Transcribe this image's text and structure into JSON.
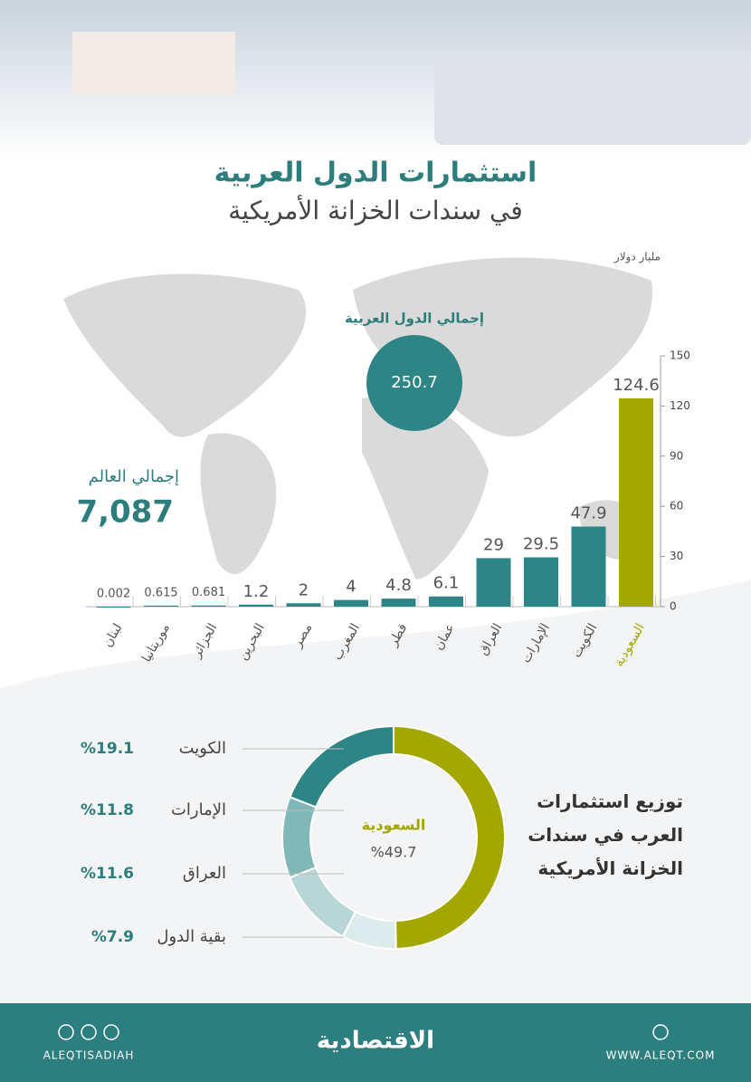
{
  "header": {
    "title": "استثمارات الدول العربية",
    "subtitle": "في سندات الخزانة الأمريكية"
  },
  "chart_data": [
    {
      "type": "bar",
      "y_label": "مليار دولار",
      "categories": [
        "السعودية",
        "الكويت",
        "الإمارات",
        "العراق",
        "عمان",
        "قطر",
        "المغرب",
        "مصر",
        "البحرين",
        "الجزائر",
        "موريتانيا",
        "لبنان"
      ],
      "values": [
        124.6,
        47.9,
        29.5,
        29,
        6.1,
        4.8,
        4,
        2,
        1.2,
        0.681,
        0.615,
        0.002
      ],
      "colors": [
        "#a3a800",
        "#2e8585",
        "#2e8585",
        "#2e8585",
        "#2e8585",
        "#2e8585",
        "#2e8585",
        "#2e8585",
        "#2e8585",
        "#2e8585",
        "#2e8585",
        "#2e8585"
      ],
      "ylim": [
        0,
        150
      ],
      "yticks": [
        0,
        30,
        60,
        90,
        120,
        150
      ],
      "arab_total": {
        "label": "إجمالي الدول العربية",
        "value": 250.7
      },
      "world_total": {
        "label": "إجمالي العالم",
        "value": 7087,
        "value_label": "7,087"
      }
    },
    {
      "type": "pie",
      "title": "توزيع استثمارات العرب في سندات الخزانة الأمريكية",
      "categories": [
        "السعودية",
        "الكويت",
        "الإمارات",
        "العراق",
        "بقية الدول"
      ],
      "values": [
        49.7,
        19.1,
        11.8,
        11.6,
        7.9
      ],
      "value_labels": [
        "%49.7",
        "%19.1",
        "%11.8",
        "%11.6",
        "%7.9"
      ],
      "colors": [
        "#a3a800",
        "#2e8585",
        "#80b8b8",
        "#b8d6d6",
        "#dcecec"
      ]
    }
  ],
  "footer": {
    "handle": "ALEQTISADIAH",
    "logo": "الاقتصادية",
    "website": "WWW.ALEQT.COM"
  }
}
